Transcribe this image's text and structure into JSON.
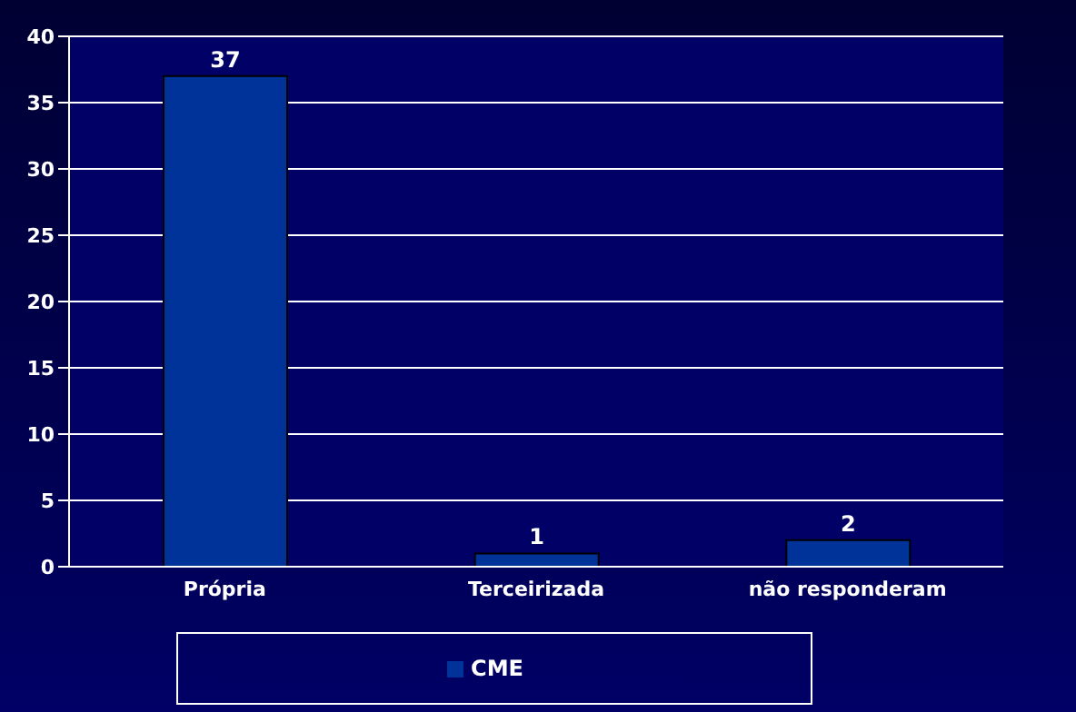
{
  "chart_data": {
    "type": "bar",
    "categories": [
      "Própria",
      "Terceirizada",
      "não responderam"
    ],
    "series": [
      {
        "name": "CME",
        "color": "#003399",
        "values": [
          37,
          1,
          2
        ]
      }
    ],
    "ylim": [
      0,
      40
    ],
    "yticks": [
      0,
      5,
      10,
      15,
      20,
      25,
      30,
      35,
      40
    ],
    "grid": "y",
    "legend": "bottom",
    "data_labels": true
  }
}
